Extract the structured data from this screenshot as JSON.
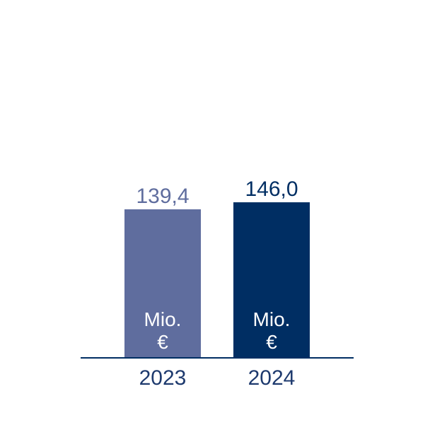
{
  "chart_data": {
    "type": "bar",
    "categories": [
      "2023",
      "2024"
    ],
    "values": [
      139.4,
      146.0
    ],
    "value_labels": [
      "139,4",
      "146,0"
    ],
    "unit_label_lines": [
      "Mio.",
      "€"
    ],
    "bar_colors": [
      "#5f6d9e",
      "#002e63"
    ],
    "value_label_colors": [
      "#5f6d9e",
      "#002e63"
    ],
    "axis_color": "#002e63",
    "tick_label_color": "#1e3a6e",
    "ylim": [
      0,
      300
    ],
    "grid": false,
    "legend": "none"
  }
}
